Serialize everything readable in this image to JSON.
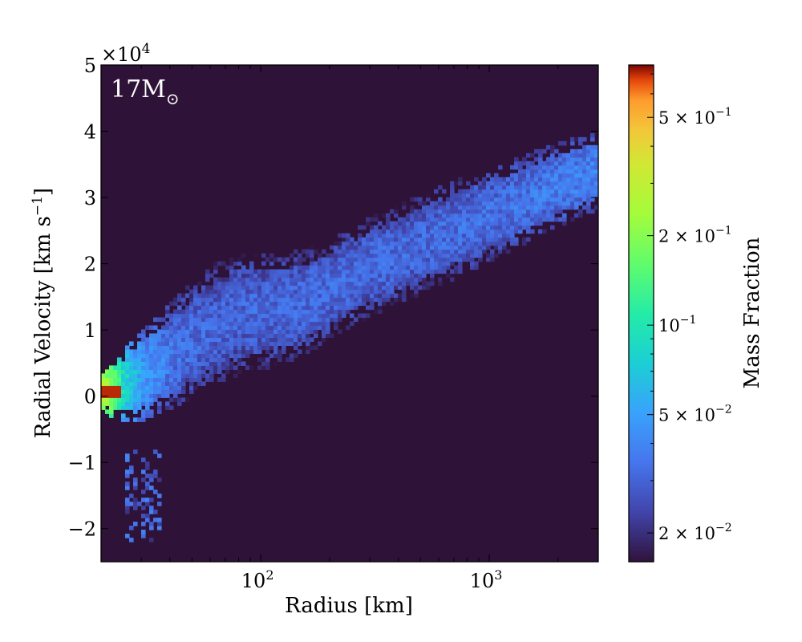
{
  "chart_data": {
    "type": "heatmap",
    "annotation": "17M",
    "annotation_subscript": "⊙",
    "xlabel": "Radius [km]",
    "ylabel": "Radial Velocity [km s",
    "ylabel_superscript": "−1",
    "ylabel_suffix": "]",
    "x_scale": "log",
    "xlim": [
      20,
      3000
    ],
    "ylim": [
      -25000,
      50000
    ],
    "y_offset_text": "×10",
    "y_offset_exponent": "4",
    "x_ticks": [
      {
        "value": 100,
        "base": "10",
        "exp": "2"
      },
      {
        "value": 1000,
        "base": "10",
        "exp": "3"
      }
    ],
    "y_ticks": [
      {
        "value": -20000,
        "label": "−2"
      },
      {
        "value": -10000,
        "label": "−1"
      },
      {
        "value": 0,
        "label": "0"
      },
      {
        "value": 10000,
        "label": "1"
      },
      {
        "value": 20000,
        "label": "2"
      },
      {
        "value": 30000,
        "label": "3"
      },
      {
        "value": 40000,
        "label": "4"
      },
      {
        "value": 50000,
        "label": "5"
      }
    ],
    "background_color": "#2e1237",
    "colorbar": {
      "label": "Mass Fraction",
      "scale": "log",
      "range": [
        0.016,
        0.75
      ],
      "ticks": [
        {
          "value": 0.02,
          "mant": "2 × 10",
          "exp": "−2"
        },
        {
          "value": 0.05,
          "mant": "5 × 10",
          "exp": "−2"
        },
        {
          "value": 0.1,
          "mant": "10",
          "exp": "−1"
        },
        {
          "value": 0.2,
          "mant": "2 × 10",
          "exp": "−1"
        },
        {
          "value": 0.5,
          "mant": "5 × 10",
          "exp": "−1"
        }
      ]
    },
    "band": [
      {
        "r": 20,
        "center": 500,
        "width": 2500,
        "frac": 0.3
      },
      {
        "r": 25,
        "center": 1500,
        "width": 4500,
        "frac": 0.09
      },
      {
        "r": 30,
        "center": 3000,
        "width": 6000,
        "frac": 0.05
      },
      {
        "r": 40,
        "center": 6000,
        "width": 7000,
        "frac": 0.036
      },
      {
        "r": 60,
        "center": 10500,
        "width": 8000,
        "frac": 0.031
      },
      {
        "r": 80,
        "center": 12500,
        "width": 8000,
        "frac": 0.031
      },
      {
        "r": 110,
        "center": 13000,
        "width": 7500,
        "frac": 0.031
      },
      {
        "r": 150,
        "center": 14000,
        "width": 7000,
        "frac": 0.032
      },
      {
        "r": 220,
        "center": 17000,
        "width": 6500,
        "frac": 0.032
      },
      {
        "r": 300,
        "center": 19500,
        "width": 6500,
        "frac": 0.032
      },
      {
        "r": 500,
        "center": 23000,
        "width": 6500,
        "frac": 0.032
      },
      {
        "r": 800,
        "center": 26000,
        "width": 6500,
        "frac": 0.033
      },
      {
        "r": 1200,
        "center": 28500,
        "width": 6000,
        "frac": 0.034
      },
      {
        "r": 2000,
        "center": 32000,
        "width": 5500,
        "frac": 0.037
      },
      {
        "r": 3000,
        "center": 34000,
        "width": 5000,
        "frac": 0.04
      }
    ],
    "hot_spot": {
      "r": [
        20,
        24
      ],
      "v": [
        0,
        1400
      ],
      "frac": 0.7
    },
    "lower_tail": {
      "r": [
        25,
        36
      ],
      "v": [
        -22000,
        -8000
      ],
      "frac": 0.025
    }
  }
}
